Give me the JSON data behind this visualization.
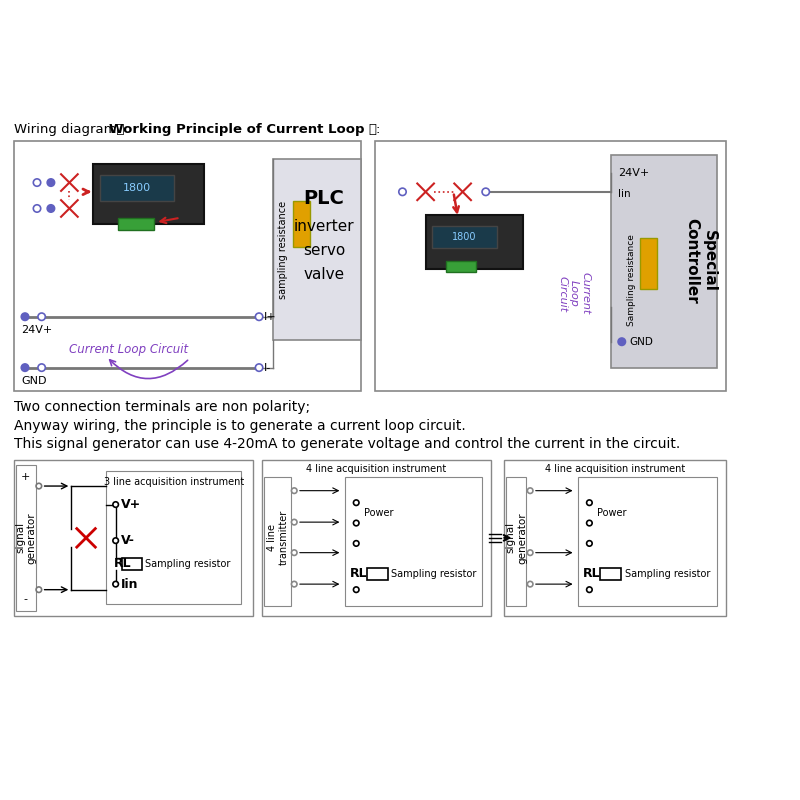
{
  "bg_color": "#ffffff",
  "title_normal": "Wiring diagram（",
  "title_bold": "Working Principle of Current Loop",
  "title_end": "）:",
  "line1": "Two connection terminals are non polarity;",
  "line2": "Anyway wiring, the principle is to generate a current loop circuit.",
  "line3": "This signal generator can use 4-20mA to generate voltage and control the current in the circuit.",
  "box1_24v": "24V+",
  "box1_gnd": "GND",
  "box1_iplus": "I+",
  "box1_iminus": "I-",
  "box1_circuit": "Current Loop Circuit",
  "box1_sampling": "sampling resistance",
  "box2_24v": "24V+",
  "box2_iin": "Iin",
  "box2_sampling": "Sampling resistance",
  "box2_gnd": "GND",
  "box2_current": "Current\nLoop\nCircuit",
  "sub1_title": "3 line acquisition instrument",
  "sub1_siggenerator": "signal\ngenerator",
  "sub1_sampling": "Sampling resistor",
  "sub2_title": "4 line acquisition instrument",
  "sub2_transmitter": "4 line\ntransmitter",
  "sub2_power": "Power",
  "sub2_sampling": "Sampling resistor",
  "sub3_title": "4 line acquisition instrument",
  "sub3_siggenerator": "signal\ngenerator",
  "sub3_power": "Power",
  "sub3_sampling": "Sampling resistor",
  "blue_dot": "#6060c0",
  "red_col": "#cc2222",
  "purple_col": "#8040c0",
  "yellow_col": "#e0a000",
  "gray_col": "#d0d0d8",
  "dark_gray": "#888888"
}
